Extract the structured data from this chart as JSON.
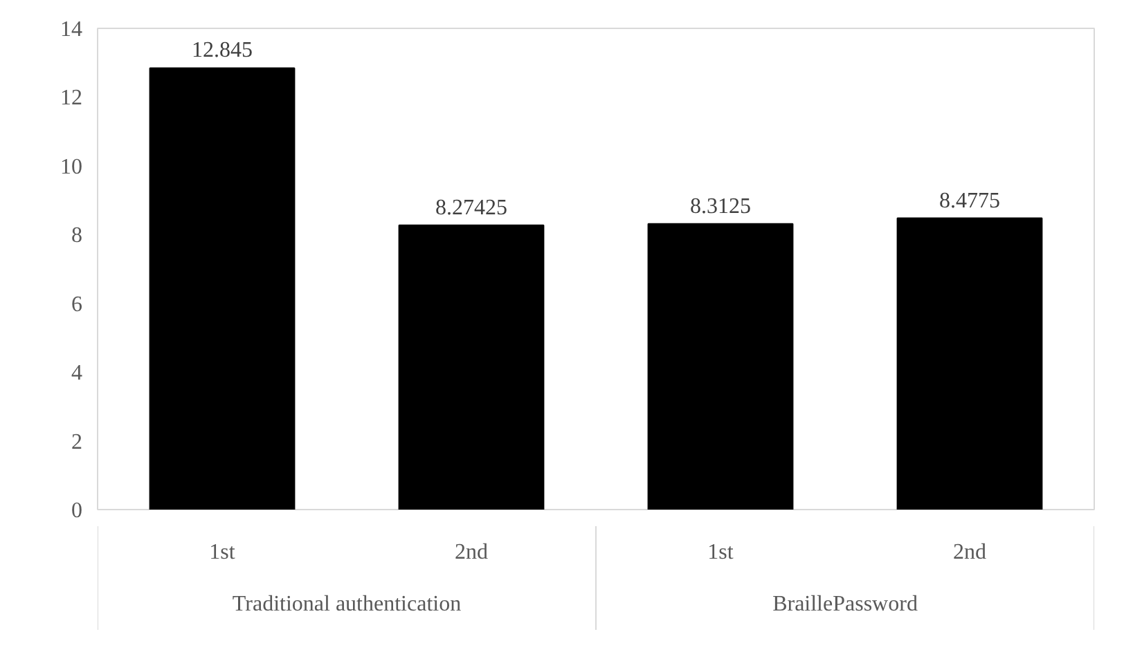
{
  "chart_data": {
    "type": "bar",
    "categories": [
      "1st",
      "2nd",
      "1st",
      "2nd"
    ],
    "values": [
      12.845,
      8.27425,
      8.3125,
      8.4775
    ],
    "color": "#000000",
    "data_labels": true,
    "ylim": [
      0,
      14
    ],
    "yticks": [
      0,
      2,
      4,
      6,
      8,
      10,
      12,
      14
    ],
    "grid": false,
    "annotations": [
      "Traditional authentication",
      "BraillePassword"
    ]
  }
}
